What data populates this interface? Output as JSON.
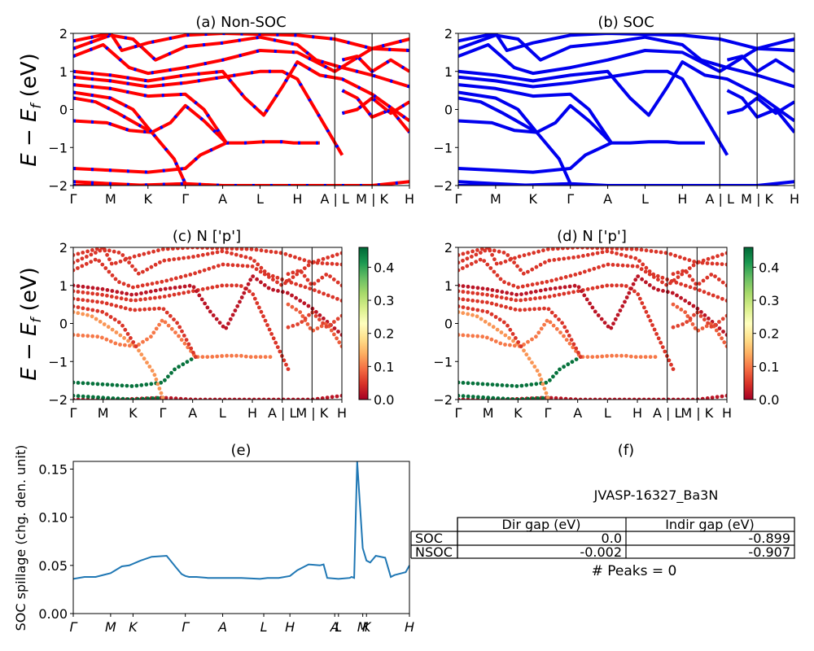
{
  "figure": {
    "y_label_text": "E − E",
    "y_label_sub": "f",
    "y_label_unit": " (eV)",
    "band_ylim": [
      -2,
      2
    ],
    "band_yticks": [
      "2",
      "1",
      "0",
      "−1",
      "−2"
    ],
    "kpath": [
      "Γ",
      "M",
      "K",
      "Γ",
      "A",
      "L",
      "H",
      "A | L",
      "M | K",
      "H"
    ],
    "kpath_projected": [
      "Γ",
      "M",
      "K",
      "Γ",
      "A",
      "L",
      "H",
      "A | L",
      "M | K",
      "H"
    ],
    "colorbar_ticks": [
      "0.4",
      "0.3",
      "0.2",
      "0.1",
      "0.0"
    ]
  },
  "panels": {
    "a": {
      "title": "(a) Non-SOC"
    },
    "b": {
      "title": "(b) SOC"
    },
    "c": {
      "title": "(c)  N ['p']"
    },
    "d": {
      "title": "(d) N ['p']"
    },
    "e": {
      "title": "(e)",
      "ylabel": "SOC spillage (chg. den. unit)",
      "yticks": [
        "0.15",
        "0.10",
        "0.05",
        "0.00"
      ],
      "xticks": [
        "Γ",
        "M",
        "K",
        "Γ",
        "A",
        "L",
        "H",
        "A",
        "L",
        "M",
        "K",
        "H"
      ]
    },
    "f": {
      "title": "(f)",
      "subtitle": "JVASP-16327_Ba3N",
      "table": {
        "headers": [
          "Dir gap (eV)",
          "Indir gap (eV)"
        ],
        "rows": [
          {
            "label": "SOC",
            "dir": "0.0",
            "indir": "-0.899"
          },
          {
            "label": "NSOC",
            "dir": "-0.002",
            "indir": "-0.907"
          }
        ]
      },
      "peaks": "# Peaks = 0"
    }
  },
  "chart_data": [
    {
      "type": "line",
      "title": "(a) Non-SOC",
      "ylabel": "E − E_f (eV)",
      "ylim": [
        -2,
        2
      ],
      "xlim": [
        0,
        9
      ],
      "x_ticks": [
        "Γ",
        "M",
        "K",
        "Γ",
        "A",
        "L",
        "H",
        "A | L",
        "M | K",
        "H"
      ],
      "colors": {
        "bands": "#ff0000",
        "overlay": "#0000ff"
      },
      "series": [
        {
          "values": [
            [
              0,
              -2.0
            ],
            [
              1.5,
              -2.0
            ],
            [
              3,
              -1.95
            ],
            [
              4,
              -2.0
            ],
            [
              6,
              -2.0
            ],
            [
              8,
              -2.0
            ],
            [
              9,
              -1.9
            ]
          ]
        },
        {
          "values": [
            [
              0,
              -1.9
            ],
            [
              1,
              -1.95
            ],
            [
              2,
              -2.0
            ],
            [
              3,
              -1.95
            ]
          ]
        },
        {
          "values": [
            [
              0,
              -1.55
            ],
            [
              1,
              -1.6
            ],
            [
              2,
              -1.65
            ],
            [
              3,
              -1.55
            ],
            [
              3.4,
              -1.2
            ],
            [
              4.1,
              -0.88
            ]
          ]
        },
        {
          "values": [
            [
              0,
              -0.3
            ],
            [
              0.9,
              -0.35
            ],
            [
              1.5,
              -0.55
            ],
            [
              2.1,
              -0.6
            ],
            [
              2.6,
              -0.35
            ],
            [
              3,
              0.1
            ],
            [
              3.5,
              -0.3
            ],
            [
              4.1,
              -0.88
            ],
            [
              4.6,
              -0.88
            ],
            [
              5.1,
              -0.85
            ],
            [
              5.6,
              -0.85
            ],
            [
              5.9,
              -0.88
            ],
            [
              6.6,
              -0.88
            ]
          ]
        },
        {
          "values": [
            [
              0,
              0.3
            ],
            [
              0.6,
              0.2
            ],
            [
              1.2,
              -0.1
            ],
            [
              2.1,
              -0.6
            ],
            [
              2.7,
              -1.3
            ],
            [
              3,
              -1.95
            ]
          ]
        },
        {
          "values": [
            [
              0,
              0.45
            ],
            [
              1,
              0.3
            ],
            [
              1.6,
              0.0
            ],
            [
              2.1,
              -0.6
            ]
          ]
        },
        {
          "values": [
            [
              0,
              0.65
            ],
            [
              1,
              0.55
            ],
            [
              2,
              0.35
            ],
            [
              3,
              0.4
            ],
            [
              3.5,
              0.0
            ],
            [
              4.1,
              -0.88
            ]
          ]
        },
        {
          "values": [
            [
              0,
              0.85
            ],
            [
              1,
              0.75
            ],
            [
              2,
              0.6
            ],
            [
              3,
              0.7
            ],
            [
              4,
              0.85
            ],
            [
              5,
              1.0
            ],
            [
              5.6,
              1.0
            ],
            [
              6,
              0.8
            ],
            [
              6.6,
              -0.2
            ],
            [
              7.2,
              -1.2
            ]
          ]
        },
        {
          "values": [
            [
              0,
              1.0
            ],
            [
              1,
              0.9
            ],
            [
              2,
              0.75
            ],
            [
              3,
              0.9
            ],
            [
              4,
              1.0
            ],
            [
              4.6,
              0.3
            ],
            [
              5.1,
              -0.15
            ],
            [
              5.6,
              0.6
            ],
            [
              6,
              1.25
            ],
            [
              6.6,
              0.9
            ],
            [
              7.2,
              0.8
            ],
            [
              8,
              0.4
            ],
            [
              9,
              -0.3
            ]
          ]
        },
        {
          "values": [
            [
              0,
              1.4
            ],
            [
              0.8,
              1.7
            ],
            [
              1.5,
              1.1
            ],
            [
              2,
              0.95
            ],
            [
              3,
              1.1
            ],
            [
              4,
              1.3
            ],
            [
              5,
              1.55
            ],
            [
              6,
              1.5
            ],
            [
              7,
              1.0
            ],
            [
              8,
              1.6
            ],
            [
              9,
              1.55
            ]
          ]
        },
        {
          "values": [
            [
              0,
              1.6
            ],
            [
              1,
              1.95
            ],
            [
              1.6,
              1.85
            ],
            [
              2.2,
              1.3
            ],
            [
              3,
              1.65
            ],
            [
              4,
              1.75
            ],
            [
              5,
              1.9
            ],
            [
              6,
              1.7
            ],
            [
              6.5,
              1.3
            ],
            [
              7.2,
              1.1
            ],
            [
              8,
              0.9
            ],
            [
              9,
              0.6
            ]
          ]
        },
        {
          "values": [
            [
              0,
              1.8
            ],
            [
              1,
              2.0
            ],
            [
              1.3,
              1.55
            ],
            [
              2,
              1.75
            ],
            [
              3,
              1.95
            ],
            [
              4,
              2.0
            ],
            [
              6,
              1.95
            ],
            [
              7,
              1.85
            ],
            [
              8,
              1.6
            ],
            [
              9,
              1.85
            ]
          ]
        },
        {
          "values": [
            [
              7.2,
              0.5
            ],
            [
              7.6,
              0.3
            ],
            [
              8,
              -0.2
            ],
            [
              8.5,
              0.0
            ],
            [
              9,
              -0.6
            ]
          ]
        },
        {
          "values": [
            [
              7.2,
              -0.1
            ],
            [
              7.6,
              0.0
            ],
            [
              8,
              0.3
            ],
            [
              8.5,
              -0.1
            ],
            [
              9,
              0.2
            ]
          ]
        },
        {
          "values": [
            [
              7.2,
              1.3
            ],
            [
              7.6,
              1.4
            ],
            [
              8,
              1.0
            ],
            [
              8.5,
              1.3
            ],
            [
              9,
              1.0
            ]
          ]
        }
      ]
    },
    {
      "type": "line",
      "title": "(b) SOC",
      "ylim": [
        -2,
        2
      ],
      "x_ticks": [
        "Γ",
        "M",
        "K",
        "Γ",
        "A",
        "L",
        "H",
        "A | L",
        "M | K",
        "H"
      ],
      "colors": {
        "bands": "#0000ee"
      },
      "note": "same band structure as (a)"
    },
    {
      "type": "scatter",
      "title": "(c)  N ['p']",
      "ylim": [
        -2,
        2
      ],
      "colorbar": {
        "min": 0.0,
        "max": 0.46,
        "ticks": [
          0.0,
          0.1,
          0.2,
          0.3,
          0.4
        ],
        "colormap": "RdYlGn"
      },
      "band_weights": [
        0.02,
        0.45,
        0.45,
        0.1,
        0.12,
        0.05,
        0.05,
        0.05,
        0.02,
        0.05,
        0.05,
        0.05,
        0.08,
        0.06,
        0.05
      ],
      "note": "same band structure as (a), colored by N p projection"
    },
    {
      "type": "scatter",
      "title": "(d) N ['p']",
      "ylim": [
        -2,
        2
      ],
      "colorbar": {
        "min": 0.0,
        "max": 0.46,
        "ticks": [
          0.0,
          0.1,
          0.2,
          0.3,
          0.4
        ],
        "colormap": "RdYlGn"
      },
      "note": "same band structure as (a), colored by N p projection"
    },
    {
      "type": "line",
      "title": "(e)",
      "ylabel": "SOC spillage (chg. den. unit)",
      "ylim": [
        0.0,
        0.158
      ],
      "xlim": [
        0,
        9
      ],
      "y_ticks": [
        0.0,
        0.05,
        0.1,
        0.15
      ],
      "x_ticks": [
        "Γ",
        "M",
        "K",
        "Γ",
        "A",
        "L",
        "H",
        "A",
        "L",
        "M",
        "K",
        "H"
      ],
      "series": [
        {
          "name": "",
          "x": [
            0,
            0.3,
            0.6,
            1.0,
            1.3,
            1.5,
            1.8,
            2.1,
            2.5,
            2.75,
            2.9,
            3.0,
            3.1,
            3.3,
            3.6,
            4.0,
            4.5,
            5.0,
            5.2,
            5.5,
            5.8,
            6.0,
            6.3,
            6.6,
            6.7,
            6.8,
            7.1,
            7.4,
            7.45,
            7.52,
            7.6,
            7.75,
            7.85,
            7.95,
            8.1,
            8.35,
            8.5,
            8.6,
            8.8,
            8.9,
            9.0
          ],
          "values": [
            0.036,
            0.038,
            0.038,
            0.042,
            0.049,
            0.05,
            0.055,
            0.059,
            0.06,
            0.048,
            0.041,
            0.039,
            0.038,
            0.038,
            0.037,
            0.037,
            0.037,
            0.036,
            0.037,
            0.037,
            0.039,
            0.045,
            0.051,
            0.05,
            0.051,
            0.037,
            0.036,
            0.037,
            0.038,
            0.037,
            0.158,
            0.068,
            0.055,
            0.053,
            0.06,
            0.058,
            0.038,
            0.04,
            0.042,
            0.043,
            0.05
          ]
        }
      ]
    }
  ]
}
